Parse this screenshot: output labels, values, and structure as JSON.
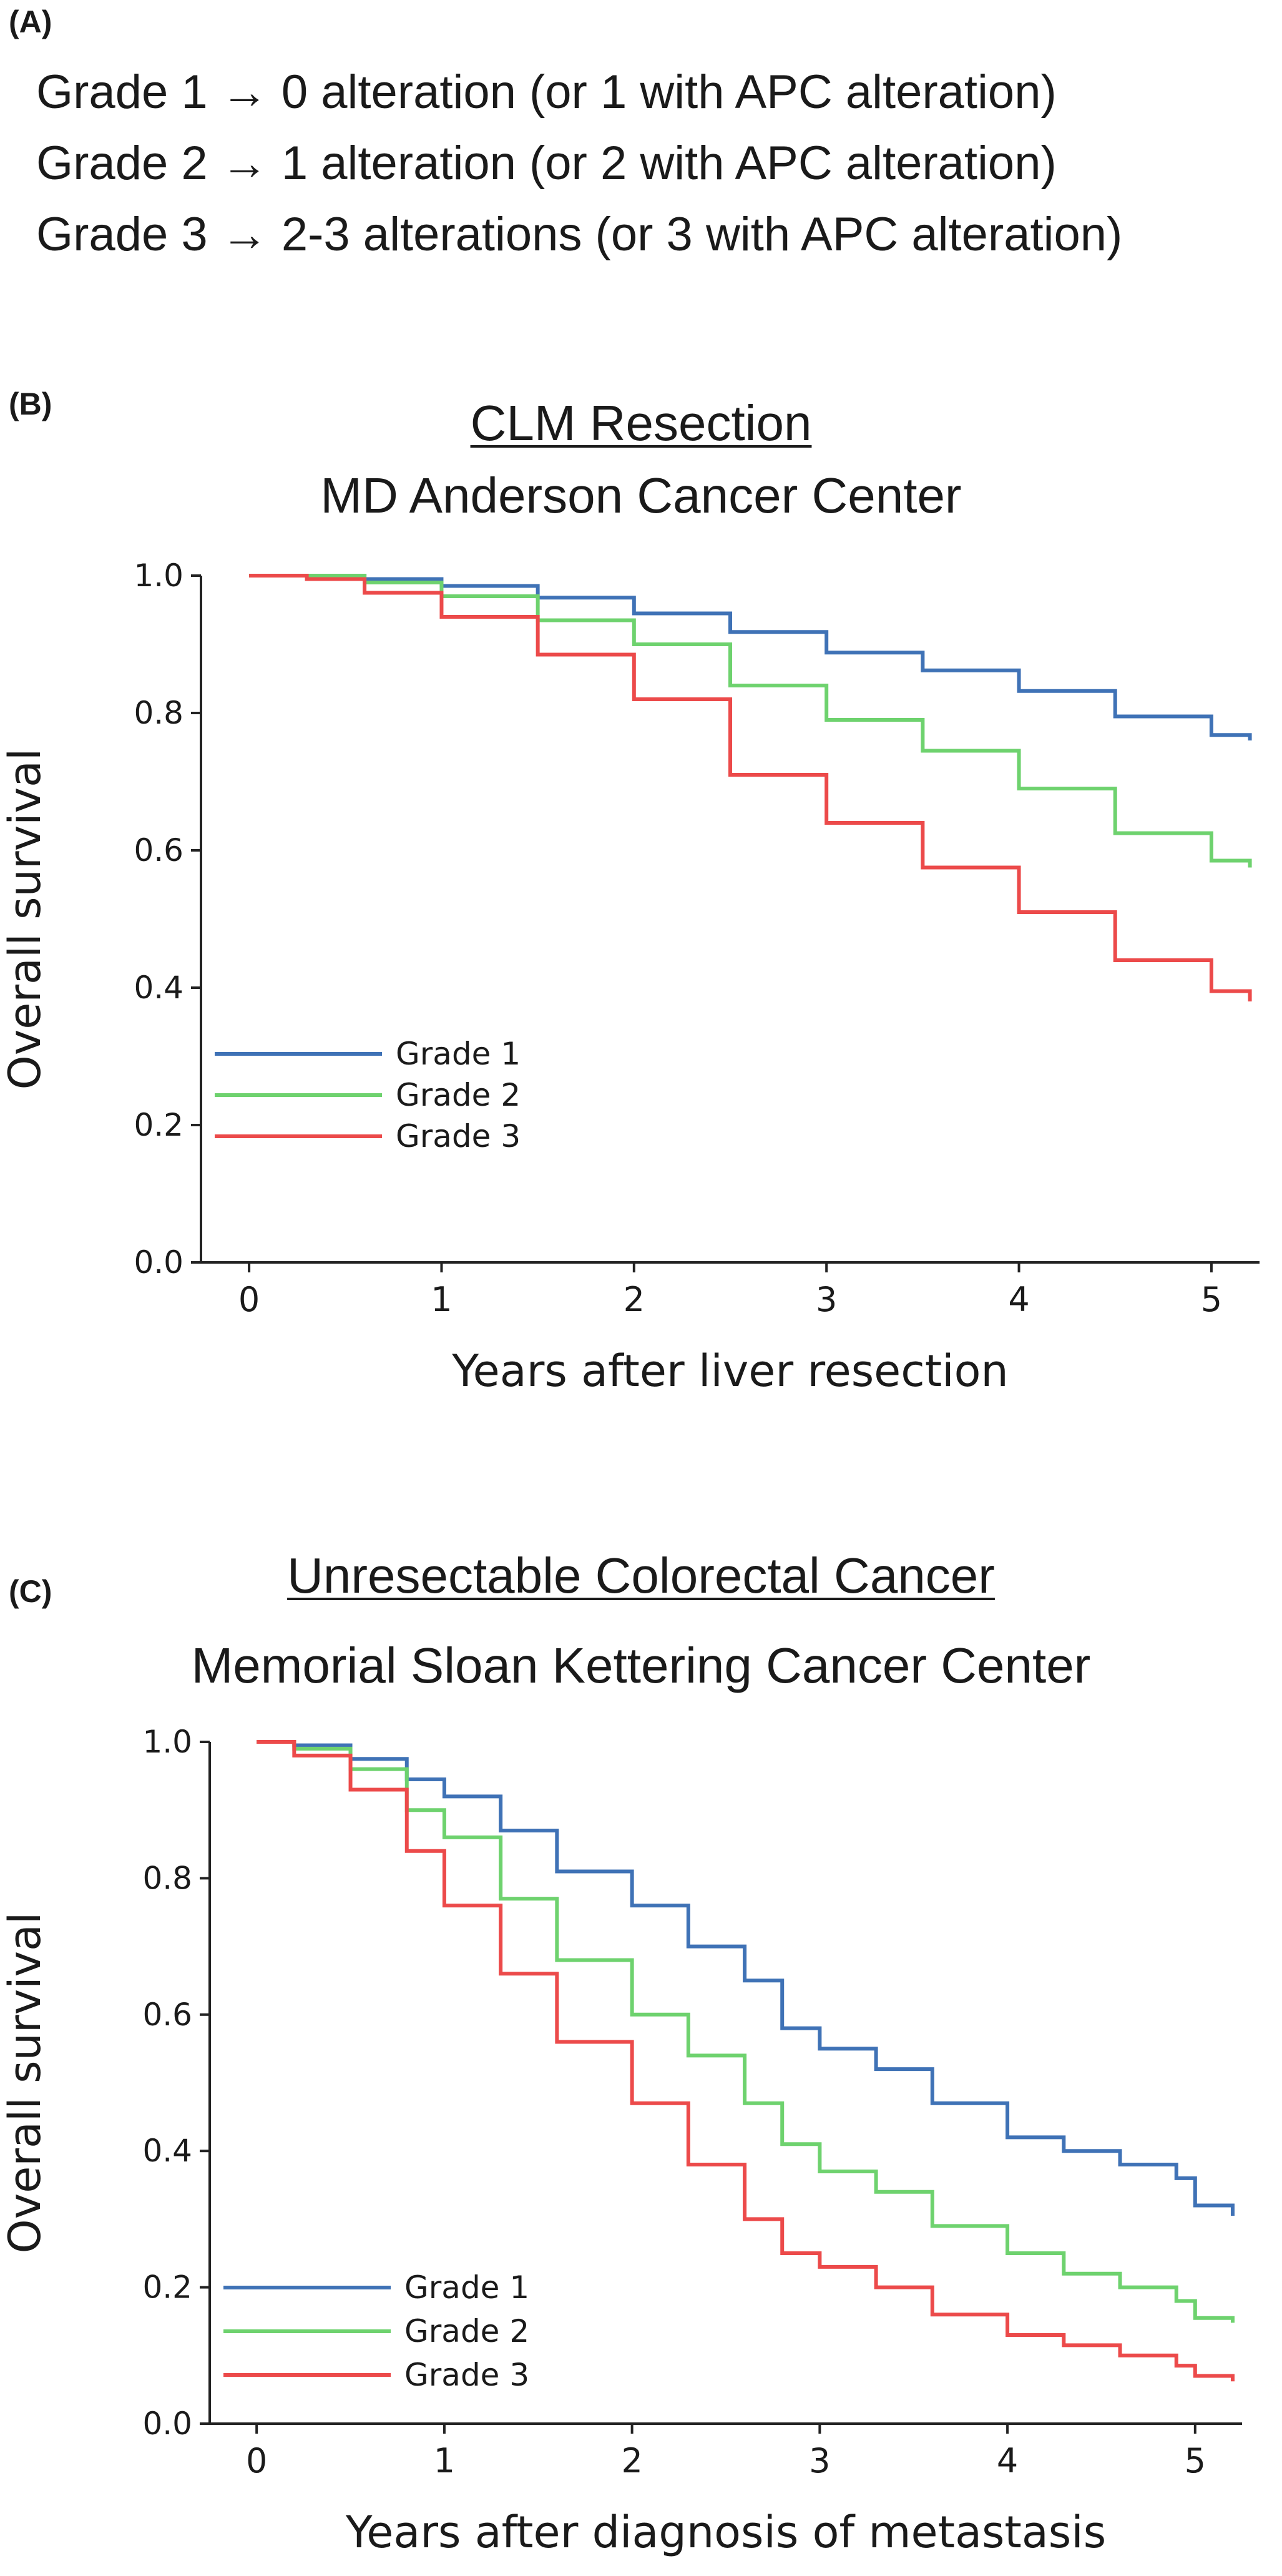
{
  "panelA": {
    "label": "(A)",
    "lines": [
      "Grade 1 → 0 alteration (or 1 with APC alteration)",
      "Grade 2 → 1 alteration (or 2 with APC alteration)",
      "Grade 3 → 2-3 alterations (or 3 with APC alteration)"
    ]
  },
  "panelB": {
    "label": "(B)",
    "title": "CLM Resection",
    "subtitle": "MD Anderson Cancer Center"
  },
  "panelC": {
    "label": "(C)",
    "title": "Unresectable Colorectal Cancer",
    "subtitle": "Memorial Sloan Kettering Cancer Center"
  },
  "chart_data": [
    {
      "type": "line",
      "step": true,
      "title": "CLM Resection",
      "subtitle": "MD Anderson Cancer Center",
      "xlabel": "Years after liver resection",
      "ylabel": "Overall survival",
      "xlim": [
        -0.25,
        5.25
      ],
      "ylim": [
        0,
        1.0
      ],
      "xticks": [
        0,
        1,
        2,
        3,
        4,
        5
      ],
      "yticks": [
        0.0,
        0.2,
        0.4,
        0.6,
        0.8,
        1.0
      ],
      "xtick_labels": [
        "0",
        "1",
        "2",
        "3",
        "4",
        "5"
      ],
      "ytick_labels": [
        "0.0",
        "0.2",
        "0.4",
        "0.6",
        "0.8",
        "1.0"
      ],
      "grid": false,
      "legend": "bottom-left",
      "series": [
        {
          "name": "Grade 1",
          "color": "#3f72b6",
          "x": [
            0,
            0.3,
            0.6,
            1.0,
            1.5,
            2.0,
            2.5,
            3.0,
            3.5,
            4.0,
            4.5,
            5.0,
            5.2
          ],
          "y": [
            1.0,
            1.0,
            0.995,
            0.985,
            0.968,
            0.945,
            0.918,
            0.888,
            0.862,
            0.832,
            0.795,
            0.768,
            0.76
          ]
        },
        {
          "name": "Grade 2",
          "color": "#6ed26e",
          "x": [
            0,
            0.3,
            0.6,
            1.0,
            1.5,
            2.0,
            2.5,
            3.0,
            3.5,
            4.0,
            4.5,
            5.0,
            5.2
          ],
          "y": [
            1.0,
            1.0,
            0.99,
            0.97,
            0.935,
            0.9,
            0.84,
            0.79,
            0.745,
            0.69,
            0.625,
            0.585,
            0.575
          ]
        },
        {
          "name": "Grade 3",
          "color": "#ec4a4a",
          "x": [
            0,
            0.3,
            0.6,
            1.0,
            1.5,
            2.0,
            2.5,
            3.0,
            3.5,
            4.0,
            4.5,
            5.0,
            5.2
          ],
          "y": [
            1.0,
            0.995,
            0.975,
            0.94,
            0.885,
            0.82,
            0.71,
            0.64,
            0.575,
            0.51,
            0.44,
            0.395,
            0.38
          ]
        }
      ]
    },
    {
      "type": "line",
      "step": true,
      "title": "Unresectable Colorectal Cancer",
      "subtitle": "Memorial Sloan Kettering Cancer Center",
      "xlabel": "Years after diagnosis of metastasis",
      "ylabel": "Overall survival",
      "xlim": [
        -0.25,
        5.25
      ],
      "ylim": [
        0,
        1.0
      ],
      "xticks": [
        0,
        1,
        2,
        3,
        4,
        5
      ],
      "yticks": [
        0.0,
        0.2,
        0.4,
        0.6,
        0.8,
        1.0
      ],
      "xtick_labels": [
        "0",
        "1",
        "2",
        "3",
        "4",
        "5"
      ],
      "ytick_labels": [
        "0.0",
        "0.2",
        "0.4",
        "0.6",
        "0.8",
        "1.0"
      ],
      "grid": false,
      "legend": "bottom-left",
      "series": [
        {
          "name": "Grade 1",
          "color": "#3f72b6",
          "x": [
            0,
            0.2,
            0.5,
            0.8,
            1.0,
            1.3,
            1.6,
            2.0,
            2.3,
            2.6,
            2.8,
            3.0,
            3.3,
            3.6,
            4.0,
            4.3,
            4.6,
            4.9,
            5.0,
            5.2
          ],
          "y": [
            1.0,
            0.995,
            0.975,
            0.945,
            0.92,
            0.87,
            0.81,
            0.76,
            0.7,
            0.65,
            0.58,
            0.55,
            0.52,
            0.47,
            0.42,
            0.4,
            0.38,
            0.36,
            0.32,
            0.305
          ]
        },
        {
          "name": "Grade 2",
          "color": "#6ed26e",
          "x": [
            0,
            0.2,
            0.5,
            0.8,
            1.0,
            1.3,
            1.6,
            2.0,
            2.3,
            2.6,
            2.8,
            3.0,
            3.3,
            3.6,
            4.0,
            4.3,
            4.6,
            4.9,
            5.0,
            5.2
          ],
          "y": [
            1.0,
            0.99,
            0.96,
            0.9,
            0.86,
            0.77,
            0.68,
            0.6,
            0.54,
            0.47,
            0.41,
            0.37,
            0.34,
            0.29,
            0.25,
            0.22,
            0.2,
            0.18,
            0.155,
            0.148
          ]
        },
        {
          "name": "Grade 3",
          "color": "#ec4a4a",
          "x": [
            0,
            0.2,
            0.5,
            0.8,
            1.0,
            1.3,
            1.6,
            2.0,
            2.3,
            2.6,
            2.8,
            3.0,
            3.3,
            3.6,
            4.0,
            4.3,
            4.6,
            4.9,
            5.0,
            5.2
          ],
          "y": [
            1.0,
            0.98,
            0.93,
            0.84,
            0.76,
            0.66,
            0.56,
            0.47,
            0.38,
            0.3,
            0.25,
            0.23,
            0.2,
            0.16,
            0.13,
            0.115,
            0.1,
            0.085,
            0.07,
            0.062
          ]
        }
      ]
    }
  ]
}
